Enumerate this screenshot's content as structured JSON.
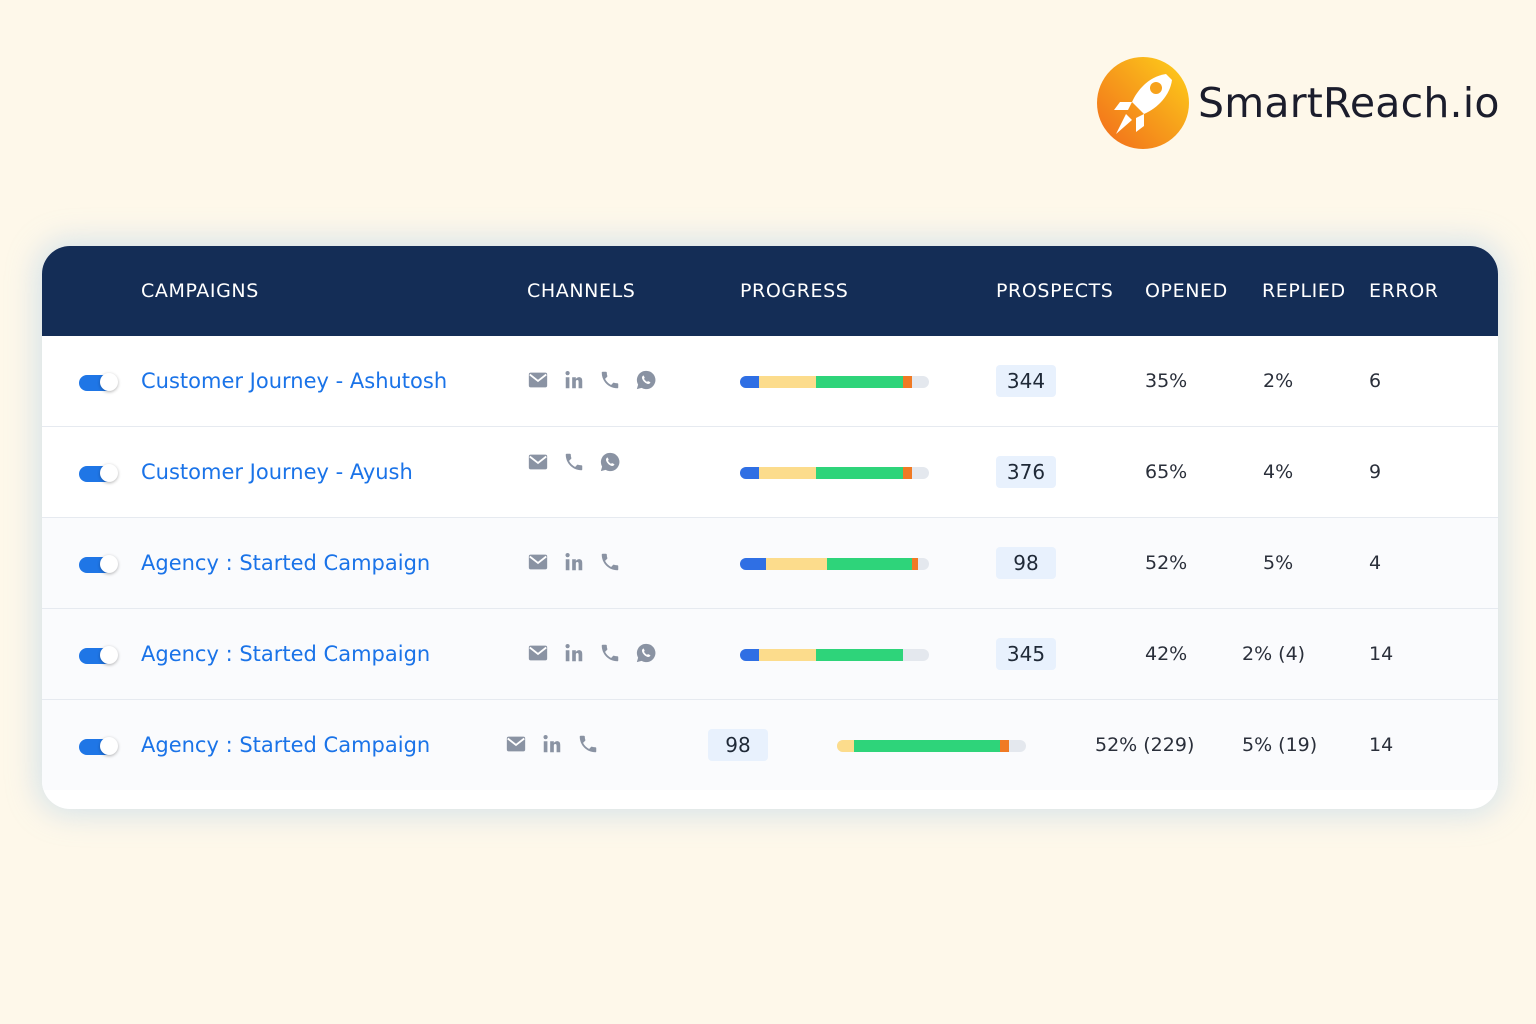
{
  "brand": {
    "name": "SmartReach.io"
  },
  "colors": {
    "background": "#fef8ea",
    "header": "#142d56",
    "link": "#1a73e8",
    "toggle_on": "#1f76e6",
    "progress_blue": "#2f6fe4",
    "progress_yellow": "#fcdc8c",
    "progress_green": "#2ed47a",
    "progress_orange": "#f07a24",
    "pill": "#e8f1fd"
  },
  "table": {
    "headers": {
      "campaigns": "CAMPAIGNS",
      "channels": "CHANNELS",
      "progress": "PROGRESS",
      "prospects": "PROSPECTS",
      "opened": "OPENED",
      "replied": "REPLIED",
      "error": "ERROR"
    },
    "rows": [
      {
        "name": "Customer Journey - Ashutosh",
        "enabled": true,
        "channels": [
          "email-icon",
          "linkedin-icon",
          "phone-icon",
          "whatsapp-icon"
        ],
        "progress": {
          "blue": 10,
          "yellow": 30,
          "green": 46,
          "orange": 5
        },
        "prospects": "344",
        "opened": "35%",
        "replied": "2%",
        "error": "6"
      },
      {
        "name": "Customer Journey - Ayush",
        "enabled": true,
        "channels": [
          "email-icon",
          "phone-icon",
          "whatsapp-icon"
        ],
        "progress": {
          "blue": 10,
          "yellow": 30,
          "green": 46,
          "orange": 5
        },
        "prospects": "376",
        "opened": "65%",
        "replied": "4%",
        "error": "9"
      },
      {
        "name": "Agency : Started Campaign",
        "enabled": true,
        "channels": [
          "email-icon",
          "linkedin-icon",
          "phone-icon"
        ],
        "progress": {
          "blue": 14,
          "yellow": 32,
          "green": 45,
          "orange": 3
        },
        "prospects": "98",
        "opened": "52%",
        "replied": "5%",
        "error": "4"
      },
      {
        "name": "Agency : Started Campaign",
        "enabled": true,
        "channels": [
          "email-icon",
          "linkedin-icon",
          "phone-icon",
          "whatsapp-icon"
        ],
        "progress": {
          "blue": 10,
          "yellow": 30,
          "green": 46,
          "orange": 0
        },
        "prospects": "345",
        "opened": "42%",
        "replied": "2% (4)",
        "error": "14"
      },
      {
        "name": "Agency : Started Campaign",
        "enabled": true,
        "channels": [
          "email-icon",
          "linkedin-icon",
          "phone-icon"
        ],
        "progress": {
          "blue": 0,
          "yellow": 9,
          "green": 77,
          "orange": 5
        },
        "prospects": "98",
        "opened": "52% (229)",
        "replied": "5% (19)",
        "error": "14"
      }
    ]
  }
}
